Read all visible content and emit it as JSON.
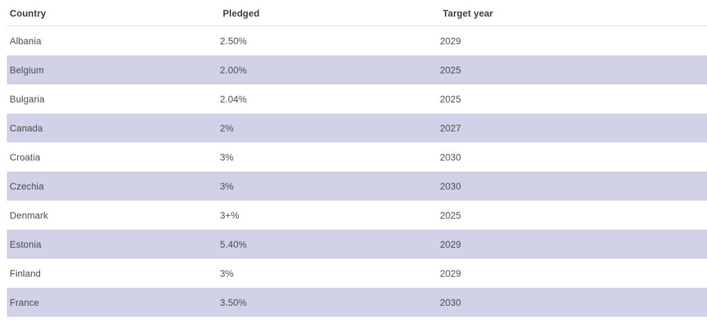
{
  "colors": {
    "row_alt": "#d1d1e8",
    "header_border": "#d9d9d9",
    "header_text": "#3d3d3d",
    "body_text": "#4b4b4b",
    "page_bg": "#ffffff"
  },
  "table": {
    "columns": [
      {
        "key": "country",
        "label": "Country"
      },
      {
        "key": "pledged",
        "label": "Pledged"
      },
      {
        "key": "target_year",
        "label": "Target year"
      }
    ],
    "rows": [
      {
        "country": "Albania",
        "pledged": "2.50%",
        "target_year": "2029"
      },
      {
        "country": "Belgium",
        "pledged": "2.00%",
        "target_year": "2025"
      },
      {
        "country": "Bulgaria",
        "pledged": "2.04%",
        "target_year": "2025"
      },
      {
        "country": "Canada",
        "pledged": "2%",
        "target_year": "2027"
      },
      {
        "country": "Croatia",
        "pledged": "3%",
        "target_year": "2030"
      },
      {
        "country": "Czechia",
        "pledged": "3%",
        "target_year": "2030"
      },
      {
        "country": "Denmark",
        "pledged": "3+%",
        "target_year": "2025"
      },
      {
        "country": "Estonia",
        "pledged": "5.40%",
        "target_year": "2029"
      },
      {
        "country": "Finland",
        "pledged": "3%",
        "target_year": "2029"
      },
      {
        "country": "France",
        "pledged": "3.50%",
        "target_year": "2030"
      }
    ]
  }
}
